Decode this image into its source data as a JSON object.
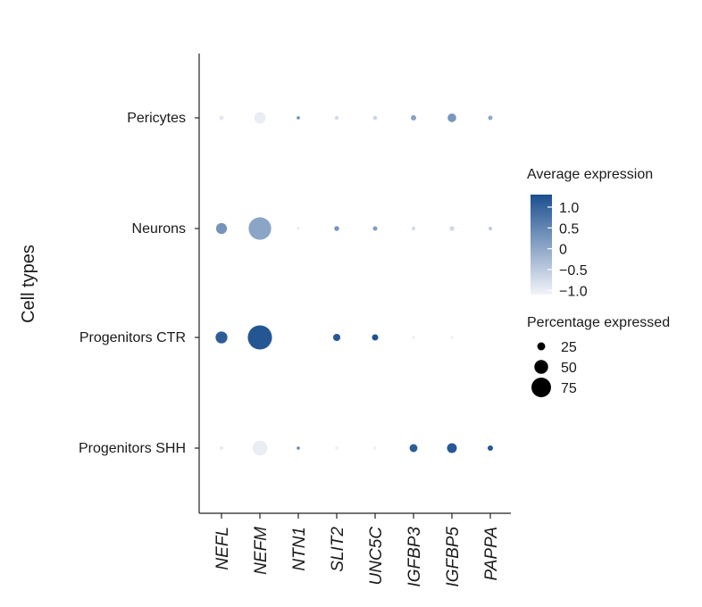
{
  "chart_data": {
    "type": "dotplot",
    "ylabel": "Cell types",
    "genes": [
      "NEFL",
      "NEFM",
      "NTN1",
      "SLIT2",
      "UNC5C",
      "IGFBP3",
      "IGFBP5",
      "PAPPA"
    ],
    "cell_types": [
      "Progenitors SHH",
      "Progenitors CTR",
      "Neurons",
      "Pericytes"
    ],
    "rows": [
      {
        "cell_type": "Pericytes",
        "pct": [
          10,
          40,
          5,
          8,
          8,
          14,
          28,
          10
        ],
        "avg": [
          -0.95,
          -1.0,
          0.3,
          -0.75,
          -0.65,
          0.1,
          0.25,
          0.0
        ]
      },
      {
        "cell_type": "Neurons",
        "pct": [
          38,
          88,
          2,
          12,
          10,
          7,
          11,
          6
        ],
        "avg": [
          0.3,
          0.05,
          -0.95,
          0.25,
          0.15,
          -0.75,
          -0.7,
          -0.5
        ]
      },
      {
        "cell_type": "Progenitors CTR",
        "pct": [
          42,
          95,
          0,
          22,
          18,
          3,
          2,
          0
        ],
        "avg": [
          1.1,
          1.2,
          0,
          1.15,
          1.25,
          -1.0,
          -1.0,
          0
        ]
      },
      {
        "cell_type": "Progenitors SHH",
        "pct": [
          7,
          55,
          4,
          4,
          3,
          25,
          33,
          14
        ],
        "avg": [
          -0.95,
          -1.0,
          0.5,
          -1.0,
          -1.0,
          1.1,
          1.15,
          1.15
        ]
      }
    ],
    "color_legend": {
      "title": "Average expression",
      "min": -1.1,
      "max": 1.3,
      "ticks": [
        "1.0",
        "0.5",
        "0",
        "−0.5",
        "−1.0"
      ],
      "tick_values": [
        1.0,
        0.5,
        0,
        -0.5,
        -1.0
      ],
      "colors": {
        "low": "#f2f4f9",
        "high": "#1b4f8f"
      }
    },
    "size_legend": {
      "title": "Percentage expressed",
      "values": [
        25,
        50,
        75
      ],
      "labels": [
        "25",
        "50",
        "75"
      ],
      "color": "#000000"
    }
  }
}
